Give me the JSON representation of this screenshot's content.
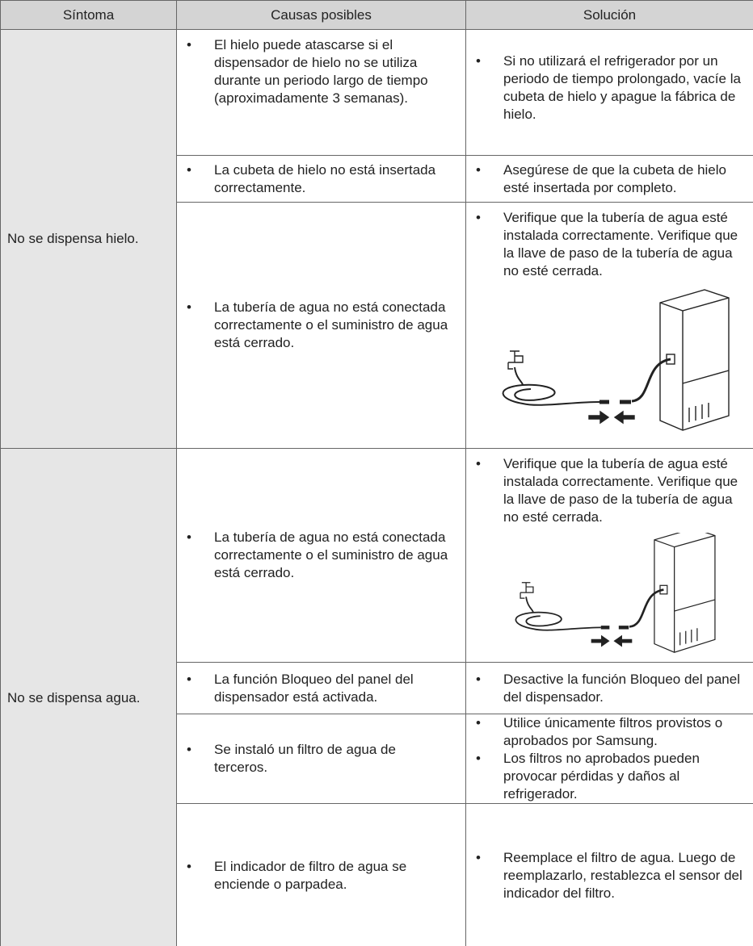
{
  "table": {
    "headers": [
      "Síntoma",
      "Causas posibles",
      "Solución"
    ],
    "groups": [
      {
        "symptom": "No se dispensa hielo.",
        "rows": [
          {
            "causes": [
              "El hielo puede atascarse si el dispensador de hielo no se utiliza durante un periodo largo de tiempo (aproximadamente 3 semanas)."
            ],
            "solutions": [
              "Si no utilizará el refrigerador por un periodo de tiempo prolongado, vacíe la cubeta de hielo y apague la fábrica de hielo."
            ]
          },
          {
            "causes": [
              "La cubeta de hielo no está insertada correctamente."
            ],
            "solutions": [
              "Asegúrese de que la cubeta de hielo esté insertada por completo."
            ]
          },
          {
            "causes": [
              "La tubería de agua no está conectada correctamente o el suministro de agua está cerrado."
            ],
            "solutions": [
              "Verifique que la tubería de agua esté instalada correctamente. Verifique que la llave de paso de la tubería de agua no esté cerrada."
            ]
          }
        ]
      },
      {
        "symptom": "No se dispensa agua.",
        "rows": [
          {
            "causes": [
              "La tubería de agua no está conectada correctamente o el suministro de agua está cerrado."
            ],
            "solutions": [
              "Verifique que la tubería de agua esté instalada correctamente. Verifique que la llave de paso de la tubería de agua no esté cerrada."
            ]
          },
          {
            "causes": [
              "La función Bloqueo del panel del dispensador está activada."
            ],
            "solutions": [
              "Desactive la función Bloqueo del panel del dispensador."
            ]
          },
          {
            "causes": [
              "Se instaló un filtro de agua de terceros."
            ],
            "solutions": [
              "Utilice únicamente filtros provistos o aprobados por Samsung.",
              "Los filtros no aprobados pueden provocar pérdidas y daños al refrigerador."
            ]
          },
          {
            "causes": [
              "El indicador de filtro de agua se enciende o parpadea."
            ],
            "solutions": [
              "Reemplace el filtro de agua. Luego de reemplazarlo, restablezca el sensor del indicador del filtro."
            ]
          }
        ]
      }
    ]
  }
}
